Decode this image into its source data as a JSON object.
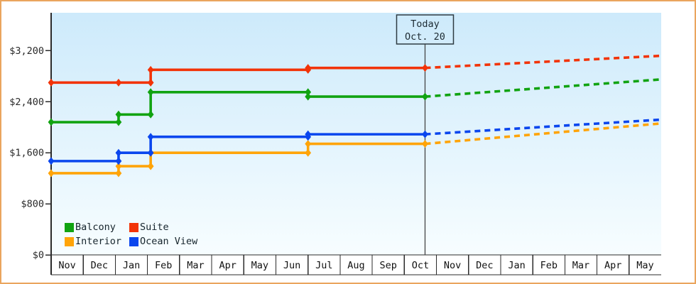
{
  "chart_data": {
    "type": "line",
    "line_style": "stepped",
    "title": "",
    "x_labels": [
      "Nov",
      "Dec",
      "Jan",
      "Feb",
      "Mar",
      "Apr",
      "May",
      "Jun",
      "Jul",
      "Aug",
      "Sep",
      "Oct",
      "Nov",
      "Dec",
      "Jan",
      "Feb",
      "Mar",
      "Apr",
      "May"
    ],
    "y_ticks": [
      {
        "value": 0,
        "label": "$0"
      },
      {
        "value": 800,
        "label": "$800"
      },
      {
        "value": 1600,
        "label": "$1,600"
      },
      {
        "value": 2400,
        "label": "$2,400"
      },
      {
        "value": 3200,
        "label": "$3,200"
      }
    ],
    "ylim": [
      0,
      3794
    ],
    "x_range_months": [
      0,
      19
    ],
    "grid": false,
    "legend_position": "inside-bottom-left",
    "today": {
      "line1": "Today",
      "line2": "Oct. 20",
      "x_index": 11.645
    },
    "series": [
      {
        "name": "Balcony",
        "color": "#11a311",
        "steps": [
          [
            0,
            2080
          ],
          [
            2.1,
            2200
          ],
          [
            3.1,
            2550
          ],
          [
            8,
            2480
          ]
        ],
        "value_at_today": 2480,
        "projected_value_at_end": 2750
      },
      {
        "name": "Suite",
        "color": "#f23308",
        "steps": [
          [
            0,
            2700
          ],
          [
            2.1,
            2700
          ],
          [
            3.1,
            2900
          ],
          [
            8,
            2930
          ]
        ],
        "value_at_today": 2930,
        "projected_value_at_end": 3120
      },
      {
        "name": "Interior",
        "color": "#ffa408",
        "steps": [
          [
            0,
            1280
          ],
          [
            2.1,
            1390
          ],
          [
            3.1,
            1600
          ],
          [
            8,
            1740
          ]
        ],
        "value_at_today": 1740,
        "projected_value_at_end": 2060
      },
      {
        "name": "Ocean View",
        "color": "#0a46ee",
        "steps": [
          [
            0,
            1470
          ],
          [
            2.1,
            1600
          ],
          [
            3.1,
            1850
          ],
          [
            8,
            1890
          ]
        ],
        "value_at_today": 1890,
        "projected_value_at_end": 2120
      }
    ],
    "colors": {
      "frame_border": "#eaa55e",
      "plot_bg_top": "#cdeafb",
      "plot_bg_bottom": "#f7fdff",
      "axis": "#2b2b2b",
      "today_line": "#444444",
      "today_box_border": "#2e3b42"
    }
  }
}
